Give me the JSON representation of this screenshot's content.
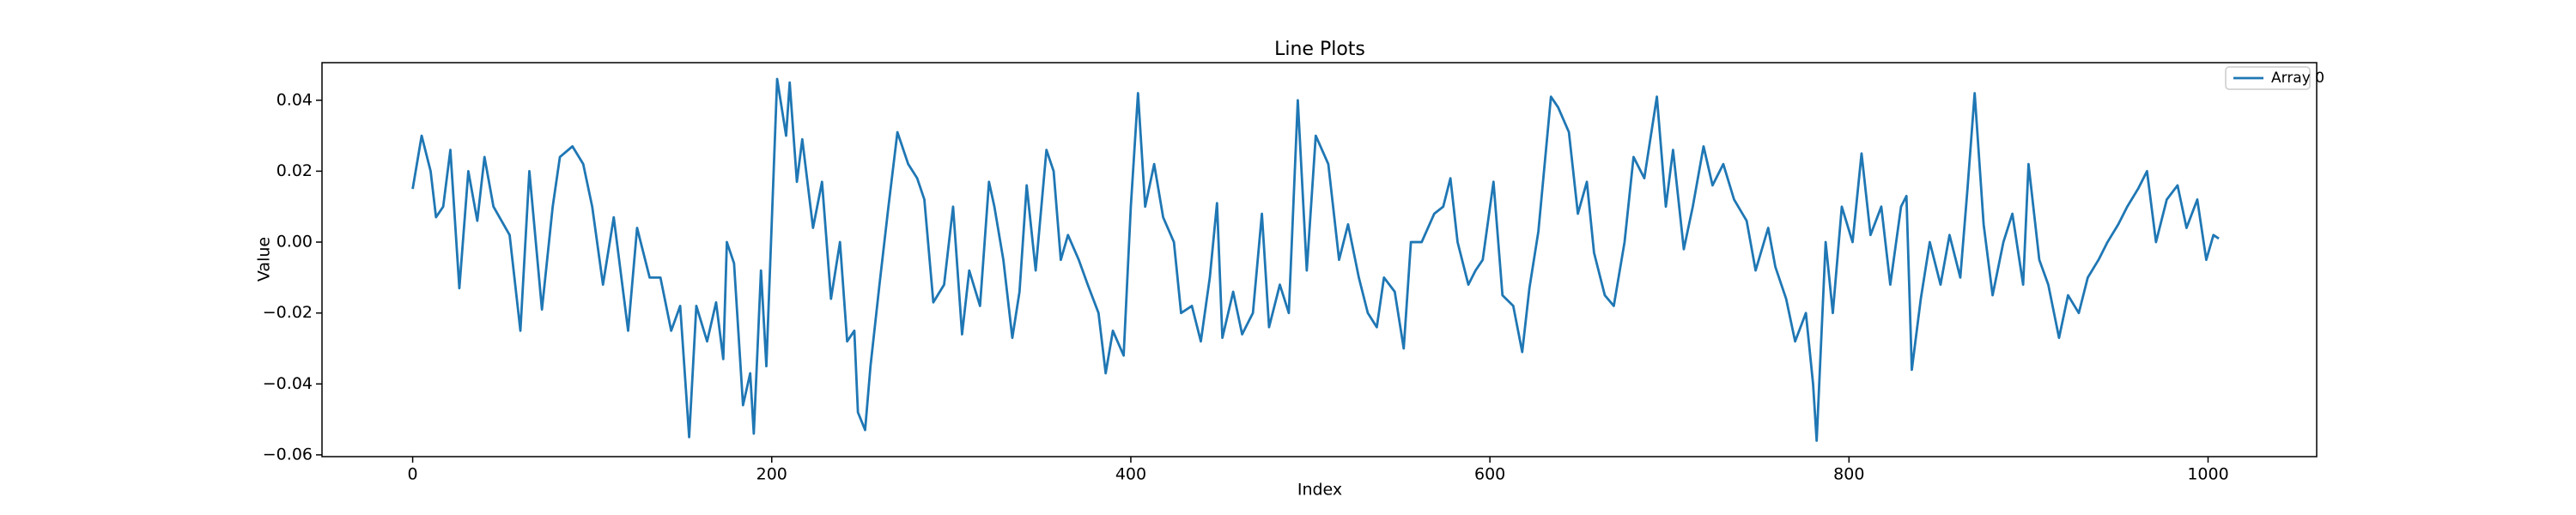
{
  "chart_data": {
    "type": "line",
    "title": "Line Plots",
    "x_label": "Index",
    "y_label": "Value",
    "xlim": [
      -50.5,
      1060.5
    ],
    "ylim": [
      -0.0605,
      0.0506
    ],
    "xticks": [
      0,
      200,
      400,
      600,
      800,
      1000
    ],
    "yticks": [
      {
        "value": -0.06,
        "label": "−0.06"
      },
      {
        "value": -0.04,
        "label": "−0.04"
      },
      {
        "value": -0.02,
        "label": "−0.02"
      },
      {
        "value": 0,
        "label": "0.00"
      },
      {
        "value": 0.02,
        "label": "0.02"
      },
      {
        "value": 0.04,
        "label": "0.04"
      }
    ],
    "legend": "upper right",
    "grid": false,
    "x": [
      0,
      5,
      10,
      13,
      17,
      21,
      26,
      31,
      36,
      40,
      45,
      54,
      60,
      65,
      72,
      78,
      82,
      89,
      95,
      100,
      106,
      112,
      120,
      125,
      132,
      138,
      144,
      149,
      154,
      158,
      164,
      169,
      173,
      175,
      179,
      184,
      188,
      190,
      194,
      197,
      203,
      208,
      210,
      214,
      217,
      223,
      228,
      233,
      238,
      242,
      246,
      248,
      252,
      255,
      260,
      265,
      270,
      276,
      281,
      285,
      290,
      296,
      301,
      306,
      310,
      316,
      321,
      324,
      329,
      334,
      338,
      342,
      347,
      353,
      357,
      361,
      365,
      371,
      376,
      382,
      386,
      390,
      396,
      400,
      404,
      408,
      413,
      418,
      424,
      428,
      434,
      439,
      444,
      448,
      451,
      457,
      462,
      468,
      473,
      477,
      483,
      488,
      493,
      498,
      503,
      510,
      516,
      521,
      527,
      532,
      537,
      541,
      547,
      552,
      556,
      562,
      569,
      574,
      578,
      582,
      588,
      592,
      596,
      602,
      607,
      613,
      618,
      622,
      627,
      634,
      638,
      644,
      649,
      654,
      658,
      664,
      669,
      675,
      680,
      686,
      693,
      698,
      702,
      708,
      713,
      719,
      724,
      730,
      736,
      743,
      748,
      755,
      759,
      765,
      770,
      776,
      780,
      782,
      787,
      791,
      796,
      802,
      807,
      812,
      818,
      823,
      829,
      832,
      835,
      840,
      845,
      851,
      856,
      862,
      866,
      870,
      875,
      880,
      886,
      891,
      897,
      900,
      906,
      911,
      917,
      922,
      928,
      933,
      939,
      944,
      950,
      955,
      961,
      966,
      971,
      977,
      983,
      988,
      994,
      999,
      1003,
      1006
    ],
    "series": [
      {
        "name": "Array 0",
        "color": "#1f77b4",
        "values": [
          0.015,
          0.03,
          0.02,
          0.007,
          0.01,
          0.026,
          -0.013,
          0.02,
          0.006,
          0.024,
          0.01,
          0.002,
          -0.025,
          0.02,
          -0.019,
          0.01,
          0.024,
          0.027,
          0.022,
          0.01,
          -0.012,
          0.007,
          -0.025,
          0.004,
          -0.01,
          -0.01,
          -0.025,
          -0.018,
          -0.055,
          -0.018,
          -0.028,
          -0.017,
          -0.033,
          0.0,
          -0.006,
          -0.046,
          -0.037,
          -0.054,
          -0.008,
          -0.035,
          0.046,
          0.03,
          0.045,
          0.017,
          0.029,
          0.004,
          0.017,
          -0.016,
          0.0,
          -0.028,
          -0.025,
          -0.048,
          -0.053,
          -0.035,
          -0.012,
          0.01,
          0.031,
          0.022,
          0.018,
          0.012,
          -0.017,
          -0.012,
          0.01,
          -0.026,
          -0.008,
          -0.018,
          0.017,
          0.01,
          -0.005,
          -0.027,
          -0.014,
          0.016,
          -0.008,
          0.026,
          0.02,
          -0.005,
          0.002,
          -0.005,
          -0.012,
          -0.02,
          -0.037,
          -0.025,
          -0.032,
          0.01,
          0.042,
          0.01,
          0.022,
          0.007,
          0.0,
          -0.02,
          -0.018,
          -0.028,
          -0.01,
          0.011,
          -0.027,
          -0.014,
          -0.026,
          -0.02,
          0.008,
          -0.024,
          -0.012,
          -0.02,
          0.04,
          -0.008,
          0.03,
          0.022,
          -0.005,
          0.005,
          -0.01,
          -0.02,
          -0.024,
          -0.01,
          -0.014,
          -0.03,
          0.0,
          0.0,
          0.008,
          0.01,
          0.018,
          0.0,
          -0.012,
          -0.008,
          -0.005,
          0.017,
          -0.015,
          -0.018,
          -0.031,
          -0.013,
          0.003,
          0.041,
          0.038,
          0.031,
          0.008,
          0.017,
          -0.003,
          -0.015,
          -0.018,
          0.0,
          0.024,
          0.018,
          0.041,
          0.01,
          0.026,
          -0.002,
          0.01,
          0.027,
          0.016,
          0.022,
          0.012,
          0.006,
          -0.008,
          0.004,
          -0.007,
          -0.016,
          -0.028,
          -0.02,
          -0.04,
          -0.056,
          0.0,
          -0.02,
          0.01,
          0.0,
          0.025,
          0.002,
          0.01,
          -0.012,
          0.01,
          0.013,
          -0.036,
          -0.016,
          0.0,
          -0.012,
          0.002,
          -0.01,
          0.015,
          0.042,
          0.005,
          -0.015,
          0.0,
          0.008,
          -0.012,
          0.022,
          -0.005,
          -0.012,
          -0.027,
          -0.015,
          -0.02,
          -0.01,
          -0.005,
          0.0,
          0.005,
          0.01,
          0.015,
          0.02,
          0.0,
          0.012,
          0.016,
          0.004,
          0.012,
          -0.005,
          0.002,
          0.001
        ]
      }
    ]
  }
}
